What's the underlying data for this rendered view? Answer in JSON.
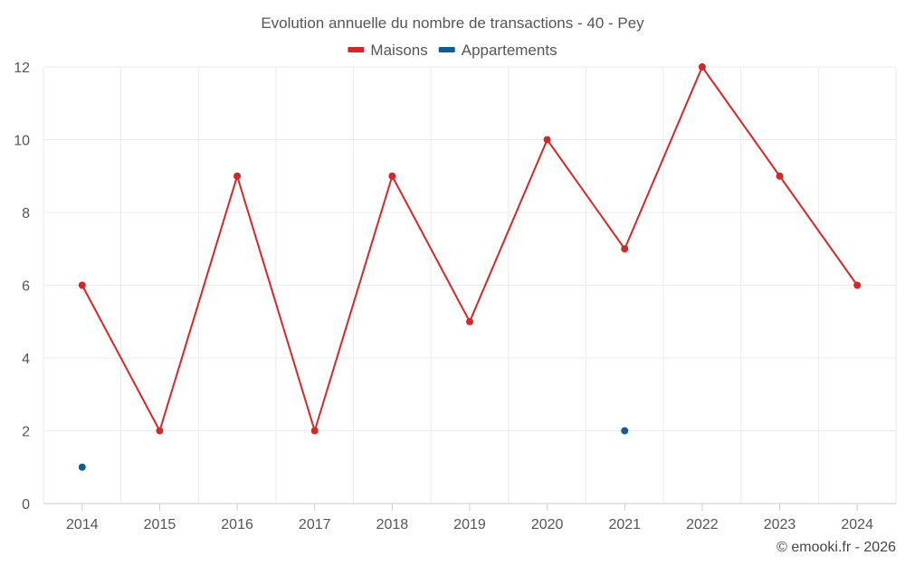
{
  "chart_data": {
    "type": "line",
    "title": "Evolution annuelle du nombre de transactions - 40 - Pey",
    "categories": [
      "2014",
      "2015",
      "2016",
      "2017",
      "2018",
      "2019",
      "2020",
      "2021",
      "2022",
      "2023",
      "2024"
    ],
    "series": [
      {
        "name": "Maisons",
        "color": "#d62728",
        "values": [
          6,
          2,
          9,
          2,
          9,
          5,
          10,
          7,
          12,
          9,
          6
        ]
      },
      {
        "name": "Appartements",
        "color": "#0b5f99",
        "values": [
          1,
          null,
          null,
          null,
          null,
          null,
          null,
          2,
          null,
          null,
          null
        ]
      }
    ],
    "ylim": [
      0,
      12
    ],
    "yticks": [
      0,
      2,
      4,
      6,
      8,
      10,
      12
    ],
    "xlabel": "",
    "ylabel": "",
    "grid": true,
    "legend_position": "top-center"
  },
  "credit": "© emooki.fr - 2026"
}
